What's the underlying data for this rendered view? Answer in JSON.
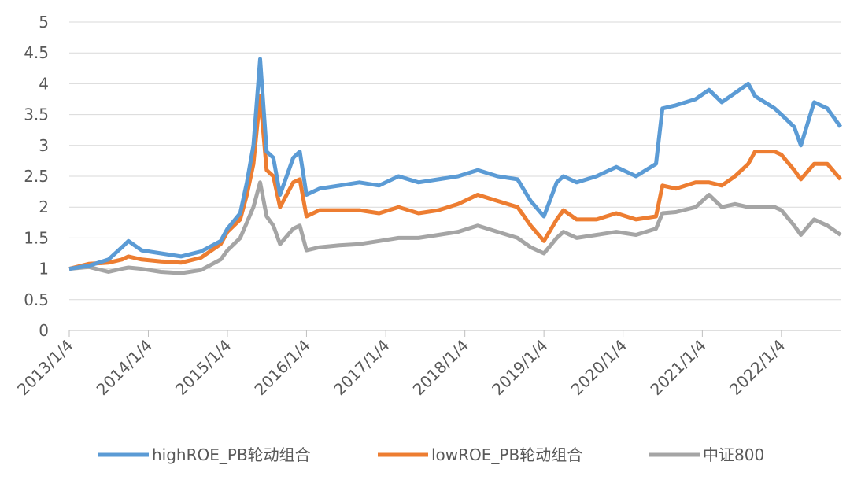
{
  "chart_data": {
    "type": "line",
    "x": [
      "2013/1/4",
      "2013/4/4",
      "2013/7/4",
      "2013/9/4",
      "2013/10/4",
      "2013/12/4",
      "2014/3/4",
      "2014/6/4",
      "2014/9/4",
      "2014/12/4",
      "2015/1/4",
      "2015/3/4",
      "2015/4/4",
      "2015/5/4",
      "2015/6/4",
      "2015/7/4",
      "2015/8/4",
      "2015/9/4",
      "2015/11/4",
      "2015/12/4",
      "2016/1/4",
      "2016/3/4",
      "2016/6/4",
      "2016/9/4",
      "2016/12/4",
      "2017/3/4",
      "2017/6/4",
      "2017/9/4",
      "2017/12/4",
      "2018/3/4",
      "2018/6/4",
      "2018/9/4",
      "2018/11/4",
      "2019/1/4",
      "2019/3/4",
      "2019/4/4",
      "2019/6/4",
      "2019/9/4",
      "2019/12/4",
      "2020/3/4",
      "2020/6/4",
      "2020/7/4",
      "2020/9/4",
      "2020/12/4",
      "2021/2/4",
      "2021/4/4",
      "2021/6/4",
      "2021/8/4",
      "2021/9/4",
      "2021/12/4",
      "2022/1/4",
      "2022/3/4",
      "2022/4/4",
      "2022/6/4",
      "2022/8/4",
      "2022/10/4"
    ],
    "series": [
      {
        "name": "highROE_PB轮动组合",
        "color": "#5b9bd5",
        "values": [
          1.0,
          1.05,
          1.15,
          1.35,
          1.45,
          1.3,
          1.25,
          1.2,
          1.28,
          1.45,
          1.65,
          1.9,
          2.4,
          3.0,
          4.4,
          2.9,
          2.8,
          2.2,
          2.8,
          2.9,
          2.2,
          2.3,
          2.35,
          2.4,
          2.35,
          2.5,
          2.4,
          2.45,
          2.5,
          2.6,
          2.5,
          2.45,
          2.1,
          1.85,
          2.4,
          2.5,
          2.4,
          2.5,
          2.65,
          2.5,
          2.7,
          3.6,
          3.65,
          3.75,
          3.9,
          3.7,
          3.85,
          4.0,
          3.8,
          3.6,
          3.5,
          3.3,
          3.0,
          3.7,
          3.6,
          3.3
        ]
      },
      {
        "name": "lowROE_PB轮动组合",
        "color": "#ed7d31",
        "values": [
          1.0,
          1.08,
          1.1,
          1.15,
          1.2,
          1.15,
          1.12,
          1.1,
          1.18,
          1.4,
          1.6,
          1.8,
          2.2,
          2.7,
          3.8,
          2.6,
          2.5,
          2.0,
          2.4,
          2.45,
          1.85,
          1.95,
          1.95,
          1.95,
          1.9,
          2.0,
          1.9,
          1.95,
          2.05,
          2.2,
          2.1,
          2.0,
          1.7,
          1.45,
          1.8,
          1.95,
          1.8,
          1.8,
          1.9,
          1.8,
          1.85,
          2.35,
          2.3,
          2.4,
          2.4,
          2.35,
          2.5,
          2.7,
          2.9,
          2.9,
          2.85,
          2.6,
          2.45,
          2.7,
          2.7,
          2.45
        ]
      },
      {
        "name": "中证800",
        "color": "#a5a5a5",
        "values": [
          1.0,
          1.03,
          0.95,
          1.0,
          1.02,
          1.0,
          0.95,
          0.93,
          0.98,
          1.15,
          1.3,
          1.5,
          1.75,
          2.0,
          2.4,
          1.85,
          1.7,
          1.4,
          1.65,
          1.7,
          1.3,
          1.35,
          1.38,
          1.4,
          1.45,
          1.5,
          1.5,
          1.55,
          1.6,
          1.7,
          1.6,
          1.5,
          1.35,
          1.25,
          1.5,
          1.6,
          1.5,
          1.55,
          1.6,
          1.55,
          1.65,
          1.9,
          1.92,
          2.0,
          2.2,
          2.0,
          2.05,
          2.0,
          2.0,
          2.0,
          1.95,
          1.7,
          1.55,
          1.8,
          1.7,
          1.55
        ]
      }
    ],
    "xlim": [
      "2013/1/4",
      "2022/10/4"
    ],
    "xticks": [
      "2013/1/4",
      "2014/1/4",
      "2015/1/4",
      "2016/1/4",
      "2017/1/4",
      "2018/1/4",
      "2019/1/4",
      "2020/1/4",
      "2021/1/4",
      "2022/1/4"
    ],
    "ylim": [
      0,
      5
    ],
    "yticks": [
      0,
      0.5,
      1,
      1.5,
      2,
      2.5,
      3,
      3.5,
      4,
      4.5,
      5
    ],
    "grid": true,
    "legend": "bottom"
  }
}
